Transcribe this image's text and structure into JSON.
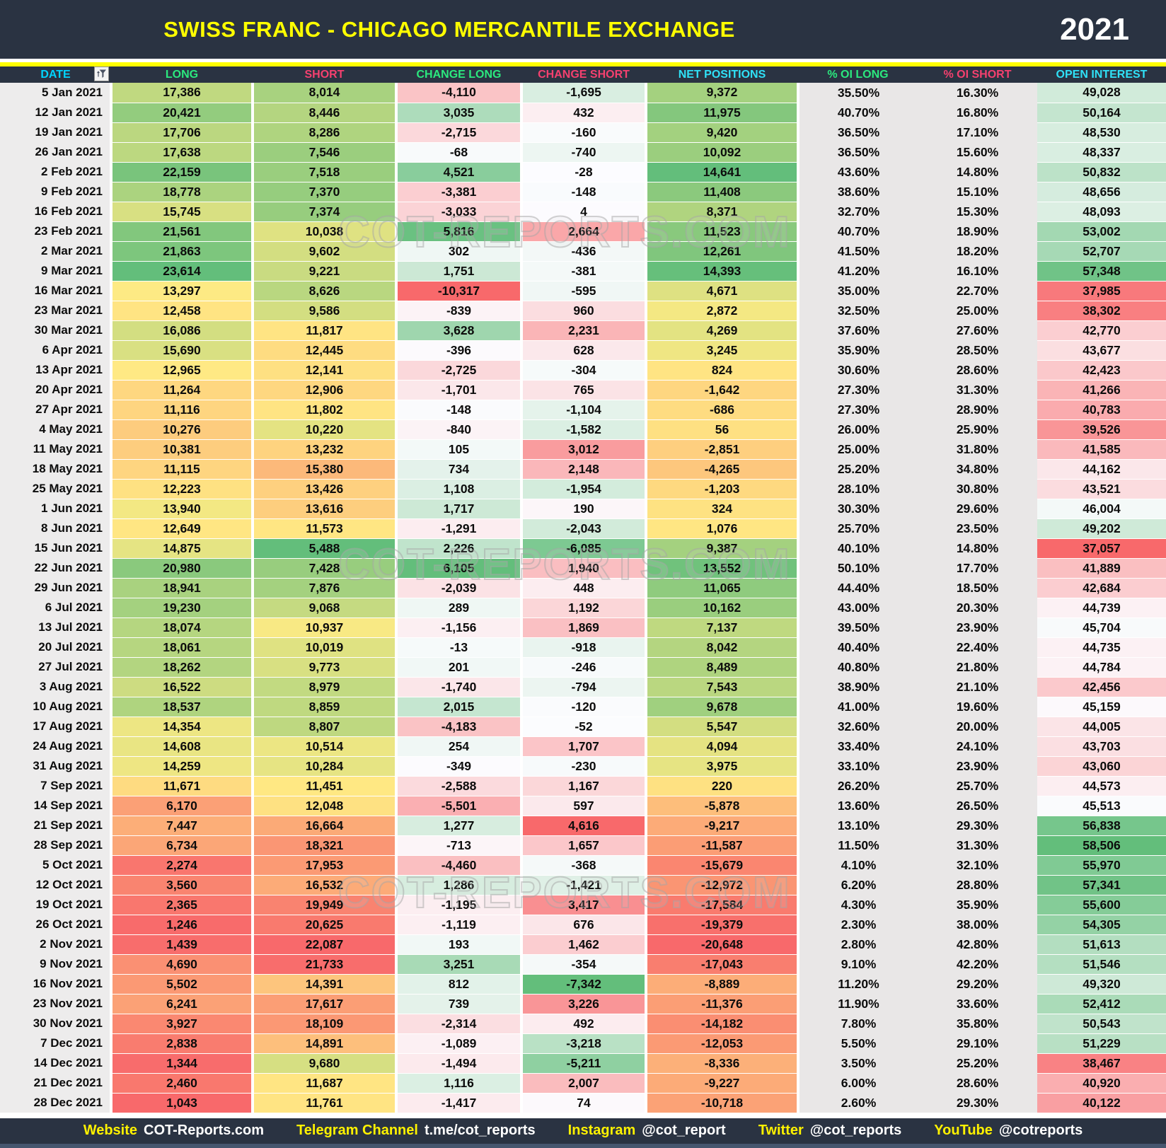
{
  "header": {
    "note": "title and year are bound from chart_data"
  },
  "icons": {
    "filter": "funnel-autofilter-icon"
  },
  "watermark": "COT-REPORTS.COM",
  "columns_style": [
    {
      "key": "date",
      "color": "#00D4FF",
      "scale": null
    },
    {
      "key": "long",
      "color": "#2BE97E",
      "scale": "ryg"
    },
    {
      "key": "short",
      "color": "#F5406F",
      "scale": "gyr"
    },
    {
      "key": "change_long",
      "color": "#2BE97E",
      "scale": "rwg"
    },
    {
      "key": "change_short",
      "color": "#F5406F",
      "scale": "gwr"
    },
    {
      "key": "net",
      "color": "#2FE1F7",
      "scale": "ryg"
    },
    {
      "key": "oi_long",
      "color": "#2BE97E",
      "scale": null
    },
    {
      "key": "oi_short",
      "color": "#F5406F",
      "scale": null
    },
    {
      "key": "open_interest",
      "color": "#2FE1F7",
      "scale": "rwg"
    }
  ],
  "scale_colors": {
    "red": "#F8696B",
    "yellow": "#FFEB84",
    "green": "#63BE7B",
    "white": "#FCFCFF"
  },
  "chart_data": {
    "type": "table",
    "title": "SWISS FRANC - CHICAGO MERCANTILE EXCHANGE",
    "year": "2021",
    "columns": [
      "DATE",
      "LONG",
      "SHORT",
      "CHANGE LONG",
      "CHANGE SHORT",
      "NET POSITIONS",
      "% OI LONG",
      "% OI SHORT",
      "OPEN INTEREST"
    ],
    "rows": [
      [
        "5 Jan 2021",
        17386,
        8014,
        -4110,
        -1695,
        9372,
        35.5,
        16.3,
        49028
      ],
      [
        "12 Jan 2021",
        20421,
        8446,
        3035,
        432,
        11975,
        40.7,
        16.8,
        50164
      ],
      [
        "19 Jan 2021",
        17706,
        8286,
        -2715,
        -160,
        9420,
        36.5,
        17.1,
        48530
      ],
      [
        "26 Jan 2021",
        17638,
        7546,
        -68,
        -740,
        10092,
        36.5,
        15.6,
        48337
      ],
      [
        "2 Feb 2021",
        22159,
        7518,
        4521,
        -28,
        14641,
        43.6,
        14.8,
        50832
      ],
      [
        "9 Feb 2021",
        18778,
        7370,
        -3381,
        -148,
        11408,
        38.6,
        15.1,
        48656
      ],
      [
        "16 Feb 2021",
        15745,
        7374,
        -3033,
        4,
        8371,
        32.7,
        15.3,
        48093
      ],
      [
        "23 Feb 2021",
        21561,
        10038,
        5816,
        2664,
        11523,
        40.7,
        18.9,
        53002
      ],
      [
        "2 Mar 2021",
        21863,
        9602,
        302,
        -436,
        12261,
        41.5,
        18.2,
        52707
      ],
      [
        "9 Mar 2021",
        23614,
        9221,
        1751,
        -381,
        14393,
        41.2,
        16.1,
        57348
      ],
      [
        "16 Mar 2021",
        13297,
        8626,
        -10317,
        -595,
        4671,
        35.0,
        22.7,
        37985
      ],
      [
        "23 Mar 2021",
        12458,
        9586,
        -839,
        960,
        2872,
        32.5,
        25.0,
        38302
      ],
      [
        "30 Mar 2021",
        16086,
        11817,
        3628,
        2231,
        4269,
        37.6,
        27.6,
        42770
      ],
      [
        "6 Apr 2021",
        15690,
        12445,
        -396,
        628,
        3245,
        35.9,
        28.5,
        43677
      ],
      [
        "13 Apr 2021",
        12965,
        12141,
        -2725,
        -304,
        824,
        30.6,
        28.6,
        42423
      ],
      [
        "20 Apr 2021",
        11264,
        12906,
        -1701,
        765,
        -1642,
        27.3,
        31.3,
        41266
      ],
      [
        "27 Apr 2021",
        11116,
        11802,
        -148,
        -1104,
        -686,
        27.3,
        28.9,
        40783
      ],
      [
        "4 May 2021",
        10276,
        10220,
        -840,
        -1582,
        56,
        26.0,
        25.9,
        39526
      ],
      [
        "11 May 2021",
        10381,
        13232,
        105,
        3012,
        -2851,
        25.0,
        31.8,
        41585
      ],
      [
        "18 May 2021",
        11115,
        15380,
        734,
        2148,
        -4265,
        25.2,
        34.8,
        44162
      ],
      [
        "25 May 2021",
        12223,
        13426,
        1108,
        -1954,
        -1203,
        28.1,
        30.8,
        43521
      ],
      [
        "1 Jun 2021",
        13940,
        13616,
        1717,
        190,
        324,
        30.3,
        29.6,
        46004
      ],
      [
        "8 Jun 2021",
        12649,
        11573,
        -1291,
        -2043,
        1076,
        25.7,
        23.5,
        49202
      ],
      [
        "15 Jun 2021",
        14875,
        5488,
        2226,
        -6085,
        9387,
        40.1,
        14.8,
        37057
      ],
      [
        "22 Jun 2021",
        20980,
        7428,
        6105,
        1940,
        13552,
        50.1,
        17.7,
        41889
      ],
      [
        "29 Jun 2021",
        18941,
        7876,
        -2039,
        448,
        11065,
        44.4,
        18.5,
        42684
      ],
      [
        "6 Jul 2021",
        19230,
        9068,
        289,
        1192,
        10162,
        43.0,
        20.3,
        44739
      ],
      [
        "13 Jul 2021",
        18074,
        10937,
        -1156,
        1869,
        7137,
        39.5,
        23.9,
        45704
      ],
      [
        "20 Jul 2021",
        18061,
        10019,
        -13,
        -918,
        8042,
        40.4,
        22.4,
        44735
      ],
      [
        "27 Jul 2021",
        18262,
        9773,
        201,
        -246,
        8489,
        40.8,
        21.8,
        44784
      ],
      [
        "3 Aug 2021",
        16522,
        8979,
        -1740,
        -794,
        7543,
        38.9,
        21.1,
        42456
      ],
      [
        "10 Aug 2021",
        18537,
        8859,
        2015,
        -120,
        9678,
        41.0,
        19.6,
        45159
      ],
      [
        "17 Aug 2021",
        14354,
        8807,
        -4183,
        -52,
        5547,
        32.6,
        20.0,
        44005
      ],
      [
        "24 Aug 2021",
        14608,
        10514,
        254,
        1707,
        4094,
        33.4,
        24.1,
        43703
      ],
      [
        "31 Aug 2021",
        14259,
        10284,
        -349,
        -230,
        3975,
        33.1,
        23.9,
        43060
      ],
      [
        "7 Sep 2021",
        11671,
        11451,
        -2588,
        1167,
        220,
        26.2,
        25.7,
        44573
      ],
      [
        "14 Sep 2021",
        6170,
        12048,
        -5501,
        597,
        -5878,
        13.6,
        26.5,
        45513
      ],
      [
        "21 Sep 2021",
        7447,
        16664,
        1277,
        4616,
        -9217,
        13.1,
        29.3,
        56838
      ],
      [
        "28 Sep 2021",
        6734,
        18321,
        -713,
        1657,
        -11587,
        11.5,
        31.3,
        58506
      ],
      [
        "5 Oct 2021",
        2274,
        17953,
        -4460,
        -368,
        -15679,
        4.1,
        32.1,
        55970
      ],
      [
        "12 Oct 2021",
        3560,
        16532,
        1286,
        -1421,
        -12972,
        6.2,
        28.8,
        57341
      ],
      [
        "19 Oct 2021",
        2365,
        19949,
        -1195,
        3417,
        -17584,
        4.3,
        35.9,
        55600
      ],
      [
        "26 Oct 2021",
        1246,
        20625,
        -1119,
        676,
        -19379,
        2.3,
        38.0,
        54305
      ],
      [
        "2 Nov 2021",
        1439,
        22087,
        193,
        1462,
        -20648,
        2.8,
        42.8,
        51613
      ],
      [
        "9 Nov 2021",
        4690,
        21733,
        3251,
        -354,
        -17043,
        9.1,
        42.2,
        51546
      ],
      [
        "16 Nov 2021",
        5502,
        14391,
        812,
        -7342,
        -8889,
        11.2,
        29.2,
        49320
      ],
      [
        "23 Nov 2021",
        6241,
        17617,
        739,
        3226,
        -11376,
        11.9,
        33.6,
        52412
      ],
      [
        "30 Nov 2021",
        3927,
        18109,
        -2314,
        492,
        -14182,
        7.8,
        35.8,
        50543
      ],
      [
        "7 Dec 2021",
        2838,
        14891,
        -1089,
        -3218,
        -12053,
        5.5,
        29.1,
        51229
      ],
      [
        "14 Dec 2021",
        1344,
        9680,
        -1494,
        -5211,
        -8336,
        3.5,
        25.2,
        38467
      ],
      [
        "21 Dec 2021",
        2460,
        11687,
        1116,
        2007,
        -9227,
        6.0,
        28.6,
        40920
      ],
      [
        "28 Dec 2021",
        1043,
        11761,
        -1417,
        74,
        -10718,
        2.6,
        29.3,
        40122
      ]
    ]
  },
  "footer": {
    "items": [
      {
        "label": "Website",
        "value": "COT-Reports.com"
      },
      {
        "label": "Telegram Channel",
        "value": "t.me/cot_reports"
      },
      {
        "label": "Instagram",
        "value": "@cot_report"
      },
      {
        "label": "Twitter",
        "value": "@cot_reports"
      },
      {
        "label": "YouTube",
        "value": "@cotreports"
      }
    ]
  }
}
